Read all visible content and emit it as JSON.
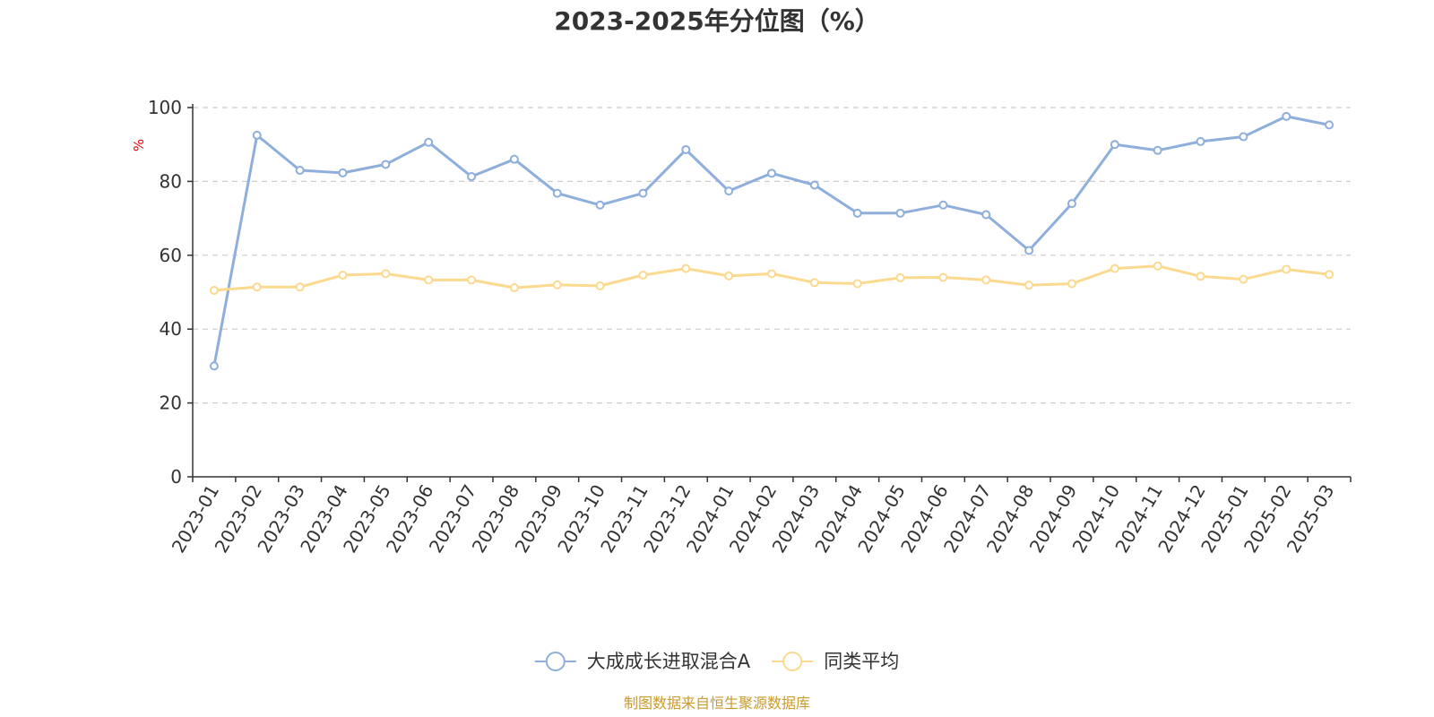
{
  "chart_data": {
    "type": "line",
    "title": "2023-2025年分位图（%）",
    "ylabel": "%",
    "ylim": [
      0,
      100
    ],
    "yticks": [
      0,
      20,
      40,
      60,
      80,
      100
    ],
    "grid": true,
    "legend_position": "bottom",
    "categories": [
      "2023-01",
      "2023-02",
      "2023-03",
      "2023-04",
      "2023-05",
      "2023-06",
      "2023-07",
      "2023-08",
      "2023-09",
      "2023-10",
      "2023-11",
      "2023-12",
      "2024-01",
      "2024-02",
      "2024-03",
      "2024-04",
      "2024-05",
      "2024-06",
      "2024-07",
      "2024-08",
      "2024-09",
      "2024-10",
      "2024-11",
      "2024-12",
      "2025-01",
      "2025-02",
      "2025-03"
    ],
    "series": [
      {
        "name": "大成成长进取混合A",
        "color": "#8eaedb",
        "values": [
          30.0,
          92.5,
          83.0,
          82.3,
          84.6,
          90.6,
          81.3,
          86.0,
          76.8,
          73.6,
          76.8,
          88.6,
          77.4,
          82.2,
          79.0,
          71.4,
          71.4,
          73.6,
          71.0,
          61.3,
          74.0,
          90.0,
          88.4,
          90.8,
          92.1,
          97.6,
          95.3
        ]
      },
      {
        "name": "同类平均",
        "color": "#fbd98f",
        "values": [
          50.5,
          51.4,
          51.4,
          54.6,
          55.0,
          53.3,
          53.3,
          51.2,
          52.0,
          51.7,
          54.6,
          56.4,
          54.4,
          55.0,
          52.6,
          52.3,
          53.9,
          54.0,
          53.3,
          51.9,
          52.3,
          56.4,
          57.1,
          54.3,
          53.5,
          56.2,
          54.8
        ]
      }
    ]
  },
  "source_text": "制图数据来自恒生聚源数据库",
  "colors": {
    "axis": "#333333",
    "grid": "#cccccc",
    "ylabel": "#e60000",
    "source": "#c99a2e"
  }
}
